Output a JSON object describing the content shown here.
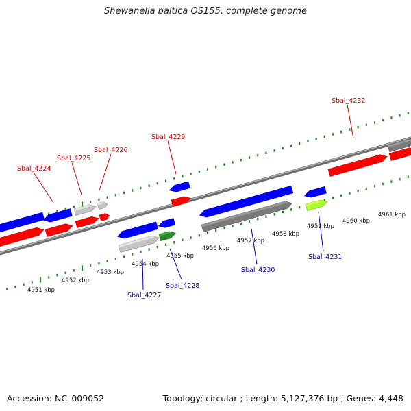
{
  "title": "Shewanella baltica OS155, complete genome",
  "accession": "Accession: NC_009052",
  "summary": {
    "topology": "Topology: circular",
    "length": "Length: 5,127,376 bp",
    "genes": "Genes: 4,448"
  },
  "colors": {
    "forward_cds": "#ff0000",
    "reverse_cds": "#0000ff",
    "pseudo_forward": "#c4c4c4",
    "pseudo_reverse": "#c4c4c4",
    "rna": "#7a7a7a",
    "green_feature": "#2c8a2c",
    "lime_feature": "#aaff33",
    "forward_label": "#cc0000",
    "reverse_label": "#0000aa",
    "tick": "#228b22",
    "backbone": "#808080"
  },
  "scale": {
    "tick_labels": [
      {
        "kbp": 4951,
        "label": "4951 kbp"
      },
      {
        "kbp": 4952,
        "label": "4952 kbp"
      },
      {
        "kbp": 4953,
        "label": "4953 kbp"
      },
      {
        "kbp": 4954,
        "label": "4954 kbp"
      },
      {
        "kbp": 4955,
        "label": "4955 kbp"
      },
      {
        "kbp": 4956,
        "label": "4956 kbp"
      },
      {
        "kbp": 4957,
        "label": "4957 kbp"
      },
      {
        "kbp": 4958,
        "label": "4958 kbp"
      },
      {
        "kbp": 4959,
        "label": "4959 kbp"
      },
      {
        "kbp": 4960,
        "label": "4960 kbp"
      },
      {
        "kbp": 4961,
        "label": "4961 kbp"
      }
    ]
  },
  "genes": {
    "labeled": [
      {
        "name": "Sbal_4224",
        "strand": "forward"
      },
      {
        "name": "Sbal_4225",
        "strand": "forward"
      },
      {
        "name": "Sbal_4226",
        "strand": "forward"
      },
      {
        "name": "Sbal_4229",
        "strand": "forward"
      },
      {
        "name": "Sbal_4232",
        "strand": "forward"
      },
      {
        "name": "Sbal_4227",
        "strand": "reverse"
      },
      {
        "name": "Sbal_4228",
        "strand": "reverse"
      },
      {
        "name": "Sbal_4230",
        "strand": "reverse"
      },
      {
        "name": "Sbal_4231",
        "strand": "reverse"
      }
    ]
  }
}
